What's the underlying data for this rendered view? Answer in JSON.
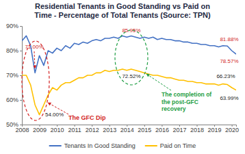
{
  "chart_data": {
    "type": "line",
    "title": "Residential Tenants in Good Standing vs Paid on Time - Percentage of Total Tenants (Source: TPN)",
    "x": [
      2008,
      2008.25,
      2008.5,
      2008.75,
      2009,
      2009.25,
      2009.5,
      2009.75,
      2010,
      2010.25,
      2010.5,
      2010.75,
      2011,
      2011.25,
      2011.5,
      2011.75,
      2012,
      2012.25,
      2012.5,
      2012.75,
      2013,
      2013.25,
      2013.5,
      2013.75,
      2014,
      2014.25,
      2014.5,
      2014.75,
      2015,
      2015.25,
      2015.5,
      2015.75,
      2016,
      2016.25,
      2016.5,
      2016.75,
      2017,
      2017.25,
      2017.5,
      2017.75,
      2018,
      2018.25,
      2018.5,
      2018.75,
      2019,
      2019.25,
      2019.5,
      2019.75,
      2020,
      2020.25
    ],
    "series": [
      {
        "name": "Tenants In Good Standing",
        "color": "#4472c4",
        "values": [
          84,
          86,
          82,
          71,
          78,
          74,
          80,
          79,
          81,
          80,
          82,
          81,
          83,
          82.5,
          83.5,
          83,
          84,
          84.5,
          84,
          85,
          85,
          85.5,
          85,
          86,
          85.5,
          85.95,
          85.5,
          85,
          85.5,
          85,
          85.5,
          84.5,
          85,
          84.5,
          84.5,
          84,
          84,
          83.5,
          83.5,
          83,
          83,
          82.5,
          82.5,
          82,
          82,
          81.5,
          82,
          81.88,
          80,
          78.57
        ]
      },
      {
        "name": "Paid on Time",
        "color": "#ffc000",
        "values": [
          70,
          70,
          66,
          58,
          54,
          58,
          62,
          65,
          64,
          66,
          67,
          67,
          68,
          69,
          69,
          70,
          70,
          71,
          71,
          72,
          71.5,
          72,
          72,
          72.5,
          72,
          72.52,
          72,
          71.5,
          71,
          70.5,
          70,
          70,
          69.5,
          69,
          69,
          68.5,
          68,
          68,
          67.5,
          67.5,
          67,
          67,
          66.5,
          66.5,
          66.5,
          66,
          66.5,
          66.23,
          65,
          63.99
        ]
      }
    ],
    "xlim": [
      2008,
      2020.25
    ],
    "xticks": [
      2008,
      2009,
      2010,
      2011,
      2012,
      2013,
      2014,
      2015,
      2016,
      2017,
      2018,
      2019,
      2020
    ],
    "ylim": [
      50,
      90
    ],
    "yticks": [
      {
        "value": 50,
        "label": "50%"
      },
      {
        "value": 60,
        "label": "60%"
      },
      {
        "value": 70,
        "label": "70%"
      },
      {
        "value": 80,
        "label": "80%"
      },
      {
        "value": 90,
        "label": "90%"
      }
    ],
    "grid": false,
    "legend": "bottom",
    "annotations": [
      "71.00%",
      "54.00%",
      "85.95%",
      "72.52%",
      "81.88%",
      "78.57%",
      "66.23%",
      "63.99%",
      "The GFC Dip",
      "The completion of the post-GFC recovery"
    ]
  }
}
